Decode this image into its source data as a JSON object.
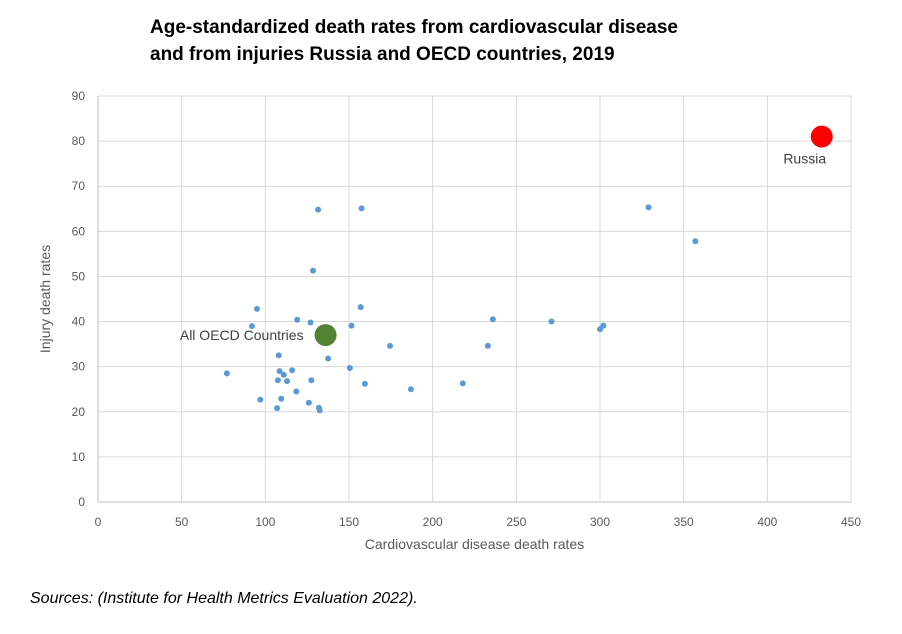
{
  "title_line1": "Age-standardized death rates from cardiovascular disease",
  "title_line2": "and from injuries Russia and OECD countries, 2019",
  "source": "Sources: (Institute for Health Metrics Evaluation 2022).",
  "chart_data": {
    "type": "scatter",
    "title": "Age-standardized death rates from cardiovascular disease and from injuries Russia and OECD countries, 2019",
    "xlabel": "Cardiovascular disease death rates",
    "ylabel": "Injury death rates",
    "xlim": [
      0,
      450
    ],
    "ylim": [
      0,
      90
    ],
    "xticks": [
      0,
      50,
      100,
      150,
      200,
      250,
      300,
      350,
      400,
      450
    ],
    "yticks": [
      0,
      10,
      20,
      30,
      40,
      50,
      60,
      70,
      80,
      90
    ],
    "grid": true,
    "colors": {
      "countries": "#5b9bd5",
      "oecd_average": "#548235",
      "russia": "#ff0000"
    },
    "points": [
      {
        "x": 77,
        "y": 28.5
      },
      {
        "x": 92,
        "y": 39
      },
      {
        "x": 95,
        "y": 42.8
      },
      {
        "x": 97,
        "y": 22.7
      },
      {
        "x": 107,
        "y": 20.8
      },
      {
        "x": 107.5,
        "y": 27
      },
      {
        "x": 108,
        "y": 32.5
      },
      {
        "x": 108.5,
        "y": 29
      },
      {
        "x": 109.5,
        "y": 22.9
      },
      {
        "x": 111,
        "y": 28.2
      },
      {
        "x": 113,
        "y": 26.8
      },
      {
        "x": 116,
        "y": 29.2
      },
      {
        "x": 118.5,
        "y": 24.5
      },
      {
        "x": 119,
        "y": 40.4
      },
      {
        "x": 126,
        "y": 22
      },
      {
        "x": 127,
        "y": 39.8
      },
      {
        "x": 127.5,
        "y": 27
      },
      {
        "x": 128.5,
        "y": 51.3
      },
      {
        "x": 131.5,
        "y": 64.8
      },
      {
        "x": 132,
        "y": 20.9
      },
      {
        "x": 132.5,
        "y": 20.3
      },
      {
        "x": 137.5,
        "y": 31.8
      },
      {
        "x": 150.5,
        "y": 29.7
      },
      {
        "x": 151.5,
        "y": 39.1
      },
      {
        "x": 157,
        "y": 43.2
      },
      {
        "x": 157.5,
        "y": 65.1
      },
      {
        "x": 159.5,
        "y": 26.2
      },
      {
        "x": 174.5,
        "y": 34.6
      },
      {
        "x": 187,
        "y": 25
      },
      {
        "x": 218,
        "y": 26.3
      },
      {
        "x": 233,
        "y": 34.6
      },
      {
        "x": 236,
        "y": 40.5
      },
      {
        "x": 271,
        "y": 40
      },
      {
        "x": 300,
        "y": 38.3
      },
      {
        "x": 302,
        "y": 39.1
      },
      {
        "x": 329,
        "y": 65.3
      },
      {
        "x": 357,
        "y": 57.8
      }
    ],
    "highlights": [
      {
        "label": "All OECD Countries",
        "x": 136,
        "y": 37,
        "color": "#548235",
        "label_side": "left"
      },
      {
        "label": "Russia",
        "x": 432.5,
        "y": 81,
        "color": "#ff0000",
        "label_side": "below"
      }
    ]
  }
}
